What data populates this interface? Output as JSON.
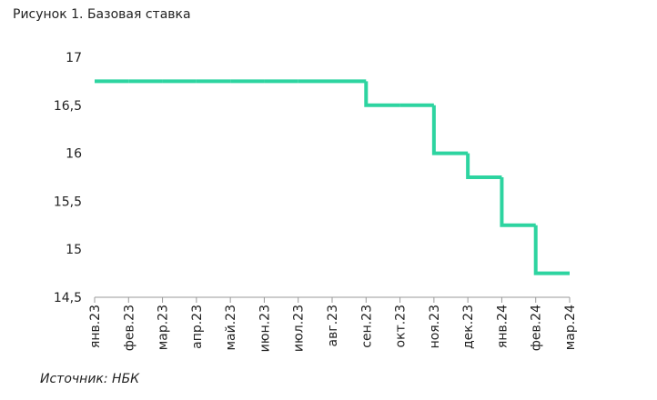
{
  "chart_data": {
    "type": "step-line",
    "title": "Рисунок 1. Базовая ставка",
    "source": "Источник: НБК",
    "categories": [
      "янв.23",
      "фев.23",
      "мар.23",
      "апр.23",
      "май.23",
      "июн.23",
      "июл.23",
      "авг.23",
      "сен.23",
      "окт.23",
      "ноя.23",
      "дек.23",
      "янв.24",
      "фев.24",
      "мар.24"
    ],
    "values": [
      16.75,
      16.75,
      16.75,
      16.75,
      16.75,
      16.75,
      16.75,
      16.75,
      16.5,
      16.5,
      16,
      15.75,
      15.25,
      14.75,
      14.75
    ],
    "color": "#2dd4a0",
    "ylim": [
      14.5,
      17
    ],
    "yticks": [
      {
        "value": 14.5,
        "label": "14,5"
      },
      15,
      {
        "value": 15.5,
        "label": "15,5"
      },
      16,
      {
        "value": 16.5,
        "label": "16,5"
      },
      17
    ]
  }
}
